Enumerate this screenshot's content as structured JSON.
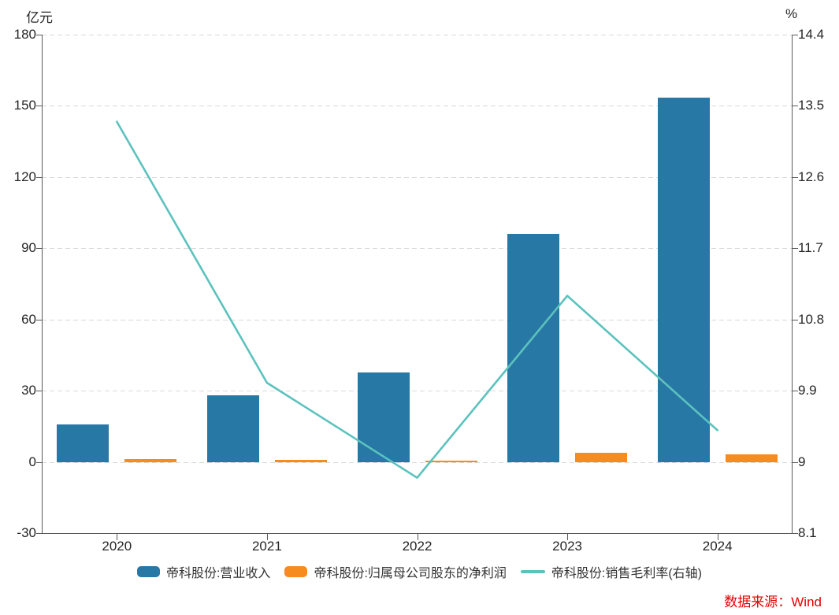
{
  "chart_data": {
    "type": "bar",
    "subtype": "grouped-bar-with-line",
    "categories": [
      "2020",
      "2021",
      "2022",
      "2023",
      "2024"
    ],
    "series": [
      {
        "name": "帝科股份:营业收入",
        "type": "bar",
        "axis": "left",
        "color": "#2878a6",
        "values": [
          15.8,
          28.1,
          37.7,
          96.0,
          153.4
        ]
      },
      {
        "name": "帝科股份:归属母公司股东的净利润",
        "type": "bar",
        "axis": "left",
        "color": "#f68b1e",
        "values": [
          1.1,
          1.0,
          0.4,
          3.9,
          3.3
        ]
      },
      {
        "name": "帝科股份:销售毛利率(右轴)",
        "type": "line",
        "axis": "right",
        "color": "#5bc2bd",
        "values": [
          13.3,
          10.0,
          8.8,
          11.1,
          9.4
        ]
      }
    ],
    "left_axis": {
      "label": "亿元",
      "min": -30,
      "max": 180,
      "ticks": [
        180,
        150,
        120,
        90,
        60,
        30,
        0,
        -30
      ]
    },
    "right_axis": {
      "label": "%",
      "min": 8.1,
      "max": 14.4,
      "ticks": [
        14.4,
        13.5,
        12.6,
        11.7,
        10.8,
        9.9,
        9,
        8.1
      ]
    },
    "grid": "horizontal-dashed",
    "legend_position": "bottom",
    "title": ""
  },
  "colors": {
    "axis": "#595959",
    "grid": "#d9d9d9",
    "text": "#262626",
    "source": "#e60000"
  },
  "source_note": "数据来源：Wind"
}
